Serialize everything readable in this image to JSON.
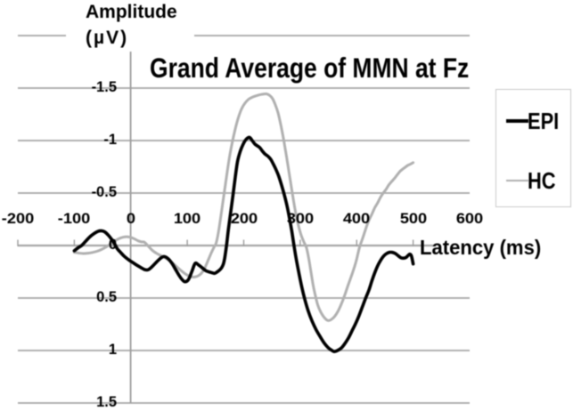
{
  "chart_data": {
    "type": "line",
    "title": "Grand Average of MMN at Fz",
    "xlabel": "Latency (ms)",
    "ylabel": "Amplitude (µV)",
    "ylabel_lines": [
      "Amplitude",
      "(µV)"
    ],
    "x_unit": "ms",
    "y_unit": "µV",
    "xlim": [
      -200,
      600
    ],
    "ylim": [
      -2.0,
      1.5
    ],
    "y_axis_reversed": true,
    "grid": true,
    "legend_position": "right",
    "x_tick_labels": [
      "-200",
      "-100",
      "0",
      "100",
      "200",
      "300",
      "400",
      "500",
      "600"
    ],
    "x_tick_values": [
      -200,
      -100,
      0,
      100,
      200,
      300,
      400,
      500,
      600
    ],
    "x_tick_marks": [
      -200,
      -100,
      0,
      100,
      200,
      300,
      400,
      500
    ],
    "y_gridline_values": [
      -2,
      -1.5,
      -1,
      -0.5,
      0,
      0.5,
      1,
      1.5
    ],
    "y_tick_labels": [
      "-1.5",
      "-1",
      "-0.5",
      "0",
      "0.5",
      "1",
      "1.5"
    ],
    "y_tick_values": [
      -1.5,
      -1,
      -0.5,
      0,
      0.5,
      1,
      1.5
    ],
    "series": [
      {
        "name": "EPI",
        "color": "#000000",
        "width": 3.6,
        "points": [
          [
            -100,
            0.05
          ],
          [
            -93,
            0.02
          ],
          [
            -87,
            0.0
          ],
          [
            -80,
            -0.04
          ],
          [
            -73,
            -0.08
          ],
          [
            -66,
            -0.11
          ],
          [
            -58,
            -0.135
          ],
          [
            -52,
            -0.14
          ],
          [
            -46,
            -0.13
          ],
          [
            -40,
            -0.1
          ],
          [
            -34,
            -0.06
          ],
          [
            -29,
            -0.02
          ],
          [
            -24,
            0.03
          ],
          [
            -19,
            0.06
          ],
          [
            -12,
            0.1
          ],
          [
            -4,
            0.135
          ],
          [
            3,
            0.16
          ],
          [
            10,
            0.185
          ],
          [
            18,
            0.21
          ],
          [
            25,
            0.23
          ],
          [
            31,
            0.23
          ],
          [
            38,
            0.2
          ],
          [
            46,
            0.155
          ],
          [
            53,
            0.12
          ],
          [
            59,
            0.105
          ],
          [
            66,
            0.125
          ],
          [
            73,
            0.17
          ],
          [
            79,
            0.225
          ],
          [
            85,
            0.28
          ],
          [
            91,
            0.325
          ],
          [
            96,
            0.345
          ],
          [
            102,
            0.325
          ],
          [
            108,
            0.25
          ],
          [
            114,
            0.17
          ],
          [
            120,
            0.185
          ],
          [
            126,
            0.21
          ],
          [
            133,
            0.24
          ],
          [
            141,
            0.255
          ],
          [
            148,
            0.265
          ],
          [
            152,
            0.255
          ],
          [
            157,
            0.235
          ],
          [
            161,
            0.21
          ],
          [
            164,
            0.175
          ],
          [
            166,
            0.13
          ],
          [
            168,
            0.06
          ],
          [
            170,
            -0.02
          ],
          [
            173,
            -0.16
          ],
          [
            177,
            -0.32
          ],
          [
            181,
            -0.48
          ],
          [
            185,
            -0.65
          ],
          [
            189,
            -0.8
          ],
          [
            194,
            -0.9
          ],
          [
            199,
            -0.965
          ],
          [
            204,
            -1.01
          ],
          [
            210,
            -1.03
          ],
          [
            215,
            -1.0
          ],
          [
            220,
            -0.965
          ],
          [
            228,
            -0.935
          ],
          [
            233,
            -0.9
          ],
          [
            238,
            -0.87
          ],
          [
            243,
            -0.85
          ],
          [
            248,
            -0.82
          ],
          [
            252,
            -0.78
          ],
          [
            257,
            -0.725
          ],
          [
            262,
            -0.66
          ],
          [
            267,
            -0.575
          ],
          [
            272,
            -0.48
          ],
          [
            277,
            -0.37
          ],
          [
            281,
            -0.26
          ],
          [
            285,
            -0.14
          ],
          [
            289,
            0.0
          ],
          [
            293,
            0.13
          ],
          [
            298,
            0.27
          ],
          [
            303,
            0.4
          ],
          [
            308,
            0.51
          ],
          [
            314,
            0.62
          ],
          [
            321,
            0.72
          ],
          [
            328,
            0.8
          ],
          [
            335,
            0.865
          ],
          [
            342,
            0.925
          ],
          [
            349,
            0.97
          ],
          [
            355,
            0.995
          ],
          [
            360,
            1.01
          ],
          [
            366,
            1.0
          ],
          [
            373,
            0.975
          ],
          [
            379,
            0.935
          ],
          [
            386,
            0.875
          ],
          [
            392,
            0.81
          ],
          [
            398,
            0.745
          ],
          [
            404,
            0.67
          ],
          [
            410,
            0.585
          ],
          [
            416,
            0.5
          ],
          [
            422,
            0.42
          ],
          [
            427,
            0.335
          ],
          [
            432,
            0.26
          ],
          [
            437,
            0.195
          ],
          [
            442,
            0.145
          ],
          [
            447,
            0.105
          ],
          [
            452,
            0.08
          ],
          [
            458,
            0.065
          ],
          [
            463,
            0.065
          ],
          [
            468,
            0.075
          ],
          [
            473,
            0.095
          ],
          [
            478,
            0.115
          ],
          [
            483,
            0.12
          ],
          [
            487,
            0.115
          ],
          [
            491,
            0.095
          ],
          [
            494,
            0.082
          ],
          [
            497,
            0.1
          ],
          [
            500,
            0.175
          ]
        ]
      },
      {
        "name": "HC",
        "color": "#b0b0b0",
        "width": 3.0,
        "points": [
          [
            -100,
            0.065
          ],
          [
            -92,
            0.072
          ],
          [
            -84,
            0.076
          ],
          [
            -76,
            0.073
          ],
          [
            -68,
            0.066
          ],
          [
            -60,
            0.055
          ],
          [
            -52,
            0.038
          ],
          [
            -44,
            0.015
          ],
          [
            -36,
            -0.015
          ],
          [
            -28,
            -0.045
          ],
          [
            -20,
            -0.068
          ],
          [
            -13,
            -0.08
          ],
          [
            -7,
            -0.084
          ],
          [
            0,
            -0.078
          ],
          [
            7,
            -0.062
          ],
          [
            13,
            -0.045
          ],
          [
            19,
            -0.035
          ],
          [
            24,
            -0.032
          ],
          [
            30,
            0.0
          ],
          [
            38,
            0.045
          ],
          [
            46,
            0.075
          ],
          [
            54,
            0.098
          ],
          [
            62,
            0.12
          ],
          [
            70,
            0.15
          ],
          [
            78,
            0.185
          ],
          [
            86,
            0.225
          ],
          [
            94,
            0.26
          ],
          [
            101,
            0.285
          ],
          [
            107,
            0.297
          ],
          [
            113,
            0.3
          ],
          [
            119,
            0.29
          ],
          [
            125,
            0.265
          ],
          [
            131,
            0.215
          ],
          [
            137,
            0.14
          ],
          [
            143,
            0.065
          ],
          [
            148,
            0.01
          ],
          [
            151,
            -0.02
          ],
          [
            155,
            -0.12
          ],
          [
            159,
            -0.26
          ],
          [
            163,
            -0.41
          ],
          [
            167,
            -0.56
          ],
          [
            171,
            -0.71
          ],
          [
            175,
            -0.85
          ],
          [
            180,
            -0.99
          ],
          [
            185,
            -1.11
          ],
          [
            190,
            -1.21
          ],
          [
            196,
            -1.3
          ],
          [
            202,
            -1.355
          ],
          [
            209,
            -1.395
          ],
          [
            216,
            -1.415
          ],
          [
            224,
            -1.43
          ],
          [
            232,
            -1.44
          ],
          [
            240,
            -1.445
          ],
          [
            246,
            -1.43
          ],
          [
            251,
            -1.4
          ],
          [
            256,
            -1.34
          ],
          [
            261,
            -1.26
          ],
          [
            266,
            -1.14
          ],
          [
            271,
            -1.0
          ],
          [
            276,
            -0.84
          ],
          [
            281,
            -0.67
          ],
          [
            286,
            -0.5
          ],
          [
            291,
            -0.34
          ],
          [
            296,
            -0.21
          ],
          [
            301,
            -0.11
          ],
          [
            306,
            -0.04
          ],
          [
            311,
            0.02
          ],
          [
            315,
            0.12
          ],
          [
            319,
            0.25
          ],
          [
            323,
            0.38
          ],
          [
            327,
            0.48
          ],
          [
            331,
            0.565
          ],
          [
            336,
            0.63
          ],
          [
            341,
            0.675
          ],
          [
            346,
            0.705
          ],
          [
            350,
            0.715
          ],
          [
            355,
            0.705
          ],
          [
            361,
            0.675
          ],
          [
            367,
            0.625
          ],
          [
            373,
            0.555
          ],
          [
            379,
            0.47
          ],
          [
            385,
            0.375
          ],
          [
            391,
            0.285
          ],
          [
            396,
            0.205
          ],
          [
            400,
            0.13
          ],
          [
            403,
            0.06
          ],
          [
            406,
            0.0
          ],
          [
            410,
            -0.06
          ],
          [
            414,
            -0.125
          ],
          [
            418,
            -0.19
          ],
          [
            422,
            -0.245
          ],
          [
            427,
            -0.3
          ],
          [
            432,
            -0.36
          ],
          [
            437,
            -0.405
          ],
          [
            442,
            -0.458
          ],
          [
            447,
            -0.5
          ],
          [
            452,
            -0.535
          ],
          [
            457,
            -0.578
          ],
          [
            462,
            -0.61
          ],
          [
            467,
            -0.64
          ],
          [
            472,
            -0.675
          ],
          [
            477,
            -0.708
          ],
          [
            482,
            -0.73
          ],
          [
            487,
            -0.75
          ],
          [
            491,
            -0.765
          ],
          [
            495,
            -0.775
          ],
          [
            500,
            -0.79
          ]
        ]
      }
    ]
  },
  "legend": {
    "items": [
      {
        "label": "EPI"
      },
      {
        "label": "HC"
      }
    ]
  },
  "colors": {
    "background": "#ffffff",
    "grid": "#a6a6a6",
    "axis": "#9c9c9c",
    "tick": "#9c9c9c",
    "text": "#000000",
    "legend_border": "#c9c9c9"
  }
}
